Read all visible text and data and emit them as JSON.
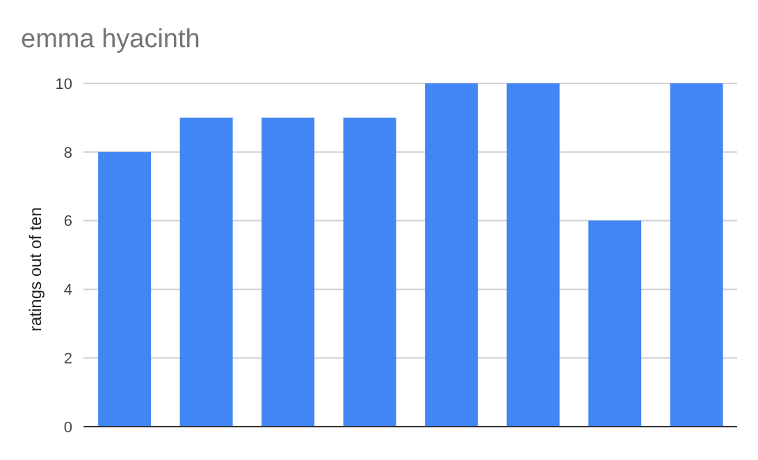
{
  "chart_data": {
    "type": "bar",
    "title": "emma hyacinth",
    "ylabel": "ratings out of ten",
    "categories": [
      null,
      null,
      null,
      null,
      null,
      null,
      null,
      null
    ],
    "values": [
      8,
      9,
      9,
      9,
      10,
      10,
      6,
      10
    ],
    "color": "#4285f4",
    "ylim": [
      0,
      10
    ],
    "yticks": [
      0,
      2,
      4,
      6,
      8,
      10
    ],
    "grid": "y"
  }
}
